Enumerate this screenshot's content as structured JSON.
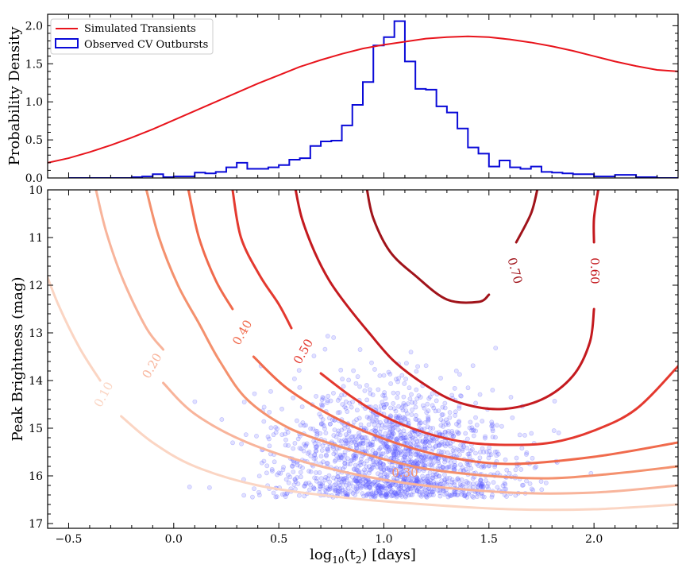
{
  "chart_data": [
    {
      "type": "line+histogram",
      "panel": "top",
      "xlim": [
        -0.6,
        2.4
      ],
      "ylim": [
        0,
        2.15
      ],
      "xlabel": "",
      "ylabel": "Probability Density",
      "yticks": [
        0.0,
        0.5,
        1.0,
        1.5,
        2.0
      ],
      "ytick_labels": [
        "0.0",
        "0.5",
        "1.0",
        "1.5",
        "2.0"
      ],
      "legend_position": "top-left",
      "series": [
        {
          "name": "Simulated Transients",
          "kind": "line",
          "color": "#e8141c",
          "points": [
            [
              -0.6,
              0.2
            ],
            [
              -0.5,
              0.26
            ],
            [
              -0.4,
              0.34
            ],
            [
              -0.3,
              0.43
            ],
            [
              -0.2,
              0.53
            ],
            [
              -0.1,
              0.64
            ],
            [
              0.0,
              0.76
            ],
            [
              0.1,
              0.88
            ],
            [
              0.2,
              1.0
            ],
            [
              0.3,
              1.12
            ],
            [
              0.4,
              1.24
            ],
            [
              0.5,
              1.35
            ],
            [
              0.6,
              1.46
            ],
            [
              0.7,
              1.55
            ],
            [
              0.8,
              1.63
            ],
            [
              0.9,
              1.7
            ],
            [
              1.0,
              1.75
            ],
            [
              1.1,
              1.79
            ],
            [
              1.2,
              1.83
            ],
            [
              1.3,
              1.85
            ],
            [
              1.4,
              1.86
            ],
            [
              1.5,
              1.85
            ],
            [
              1.6,
              1.82
            ],
            [
              1.7,
              1.78
            ],
            [
              1.8,
              1.73
            ],
            [
              1.9,
              1.67
            ],
            [
              2.0,
              1.6
            ],
            [
              2.1,
              1.53
            ],
            [
              2.2,
              1.47
            ],
            [
              2.3,
              1.42
            ],
            [
              2.4,
              1.4
            ]
          ]
        },
        {
          "name": "Observed CV Outbursts",
          "kind": "step-histogram",
          "color": "#0a0ad8",
          "bin_edges": [
            -0.5,
            -0.45,
            -0.4,
            -0.35,
            -0.3,
            -0.25,
            -0.2,
            -0.15,
            -0.1,
            -0.05,
            0.0,
            0.05,
            0.1,
            0.15,
            0.2,
            0.25,
            0.3,
            0.35,
            0.4,
            0.45,
            0.5,
            0.55,
            0.6,
            0.65,
            0.7,
            0.75,
            0.8,
            0.85,
            0.9,
            0.95,
            1.0,
            1.05,
            1.1,
            1.15,
            1.2,
            1.25,
            1.3,
            1.35,
            1.4,
            1.45,
            1.5,
            1.55,
            1.6,
            1.65,
            1.7,
            1.75,
            1.8,
            1.85,
            1.9,
            1.95,
            2.0,
            2.05,
            2.1,
            2.15,
            2.2,
            2.25,
            2.3,
            2.35,
            2.4
          ],
          "counts": [
            0.0,
            0.0,
            0.0,
            0.0,
            0.0,
            0.0,
            0.01,
            0.02,
            0.05,
            0.01,
            0.02,
            0.02,
            0.07,
            0.06,
            0.08,
            0.14,
            0.2,
            0.12,
            0.12,
            0.14,
            0.17,
            0.24,
            0.26,
            0.42,
            0.48,
            0.49,
            0.69,
            0.96,
            1.26,
            1.74,
            1.85,
            2.06,
            1.53,
            1.17,
            1.16,
            0.94,
            0.86,
            0.65,
            0.4,
            0.32,
            0.15,
            0.23,
            0.14,
            0.12,
            0.15,
            0.08,
            0.07,
            0.06,
            0.05,
            0.05,
            0.02,
            0.02,
            0.04,
            0.04,
            0.01,
            0.01,
            0.0,
            0.0
          ]
        }
      ]
    },
    {
      "type": "scatter+contour",
      "panel": "bottom",
      "xlim": [
        -0.6,
        2.4
      ],
      "ylim": [
        17.1,
        10.0
      ],
      "xlabel": "log10(t2) [days]",
      "xlabel_main": "log",
      "xlabel_sub": "10",
      "xlabel_mid": "(t",
      "xlabel_sub2": "2",
      "xlabel_end": ") [days]",
      "ylabel": "Peak Brightness (mag)",
      "xticks": [
        -0.5,
        0.0,
        0.5,
        1.0,
        1.5,
        2.0
      ],
      "xtick_labels": [
        "−0.5",
        "0.0",
        "0.5",
        "1.0",
        "1.5",
        "2.0"
      ],
      "yticks": [
        10,
        11,
        12,
        13,
        14,
        15,
        16,
        17
      ],
      "ytick_labels": [
        "10",
        "11",
        "12",
        "13",
        "14",
        "15",
        "16",
        "17"
      ],
      "scatter": {
        "name": "Observed CV Outbursts",
        "color": "#5a5aff",
        "center": [
          1.05,
          15.6
        ],
        "count": 1700
      },
      "contours": [
        {
          "level": 0.1,
          "label": "0.10",
          "color": "#fbd5c3",
          "left": [
            [
              -0.62,
              11.6
            ],
            [
              -0.55,
              12.4
            ],
            [
              -0.45,
              13.3
            ],
            [
              -0.35,
              14.0
            ]
          ],
          "label_at": [
            -0.33,
            14.3
          ],
          "label_rot": -62,
          "bottom": [
            [
              -0.25,
              14.75
            ],
            [
              -0.1,
              15.3
            ],
            [
              0.1,
              15.8
            ],
            [
              0.4,
              16.2
            ],
            [
              0.8,
              16.45
            ],
            [
              1.2,
              16.6
            ],
            [
              1.6,
              16.7
            ],
            [
              2.0,
              16.7
            ],
            [
              2.4,
              16.6
            ]
          ]
        },
        {
          "level": 0.2,
          "label": "0.20",
          "color": "#f8b49b",
          "left": [
            [
              -0.37,
              10.0
            ],
            [
              -0.32,
              10.9
            ],
            [
              -0.24,
              11.9
            ],
            [
              -0.13,
              12.9
            ],
            [
              -0.05,
              13.35
            ]
          ],
          "label_at": [
            -0.1,
            13.7
          ],
          "label_rot": -60,
          "bottom": [
            [
              -0.05,
              14.05
            ],
            [
              0.1,
              14.7
            ],
            [
              0.35,
              15.3
            ],
            [
              0.7,
              15.8
            ],
            [
              1.1,
              16.15
            ],
            [
              1.6,
              16.35
            ],
            [
              2.0,
              16.35
            ],
            [
              2.4,
              16.2
            ]
          ]
        },
        {
          "level": 0.3,
          "label": "0.30",
          "color": "#f4916e",
          "left": [
            [
              -0.13,
              10.0
            ],
            [
              -0.07,
              11.0
            ],
            [
              0.02,
              12.0
            ],
            [
              0.12,
              12.8
            ],
            [
              0.22,
              13.6
            ],
            [
              0.35,
              14.4
            ],
            [
              0.55,
              15.0
            ],
            [
              0.8,
              15.4
            ]
          ],
          "label_at": [
            1.1,
            15.95
          ],
          "label_rot": 0,
          "bottom": [
            [
              0.8,
              15.4
            ],
            [
              1.0,
              15.65
            ],
            [
              1.2,
              15.85
            ],
            [
              1.5,
              16.0
            ],
            [
              1.8,
              16.05
            ],
            [
              2.1,
              15.95
            ],
            [
              2.4,
              15.8
            ]
          ]
        },
        {
          "level": 0.4,
          "label": "0.40",
          "color": "#f06a4c",
          "left": [
            [
              0.07,
              10.0
            ],
            [
              0.12,
              11.0
            ],
            [
              0.2,
              11.9
            ],
            [
              0.28,
              12.5
            ]
          ],
          "label_at": [
            0.33,
            13.0
          ],
          "label_rot": -60,
          "bottom": [
            [
              0.38,
              13.5
            ],
            [
              0.55,
              14.2
            ],
            [
              0.8,
              14.85
            ],
            [
              1.05,
              15.3
            ],
            [
              1.3,
              15.6
            ],
            [
              1.6,
              15.75
            ],
            [
              2.0,
              15.6
            ],
            [
              2.4,
              15.3
            ]
          ]
        },
        {
          "level": 0.5,
          "label": "0.50",
          "color": "#e4392f",
          "left": [
            [
              0.28,
              10.0
            ],
            [
              0.32,
              11.0
            ],
            [
              0.41,
              11.8
            ],
            [
              0.5,
              12.4
            ],
            [
              0.56,
              12.9
            ]
          ],
          "label_at": [
            0.62,
            13.4
          ],
          "label_rot": -60,
          "bottom": [
            [
              0.7,
              13.85
            ],
            [
              0.85,
              14.35
            ],
            [
              1.0,
              14.75
            ],
            [
              1.2,
              15.1
            ],
            [
              1.4,
              15.3
            ],
            [
              1.6,
              15.35
            ],
            [
              1.8,
              15.3
            ],
            [
              2.0,
              15.05
            ],
            [
              2.2,
              14.6
            ],
            [
              2.4,
              13.7
            ]
          ]
        },
        {
          "level": 0.6,
          "label": "0.60",
          "color": "#c41a1f",
          "left": [
            [
              0.58,
              10.0
            ],
            [
              0.61,
              10.6
            ],
            [
              0.67,
              11.3
            ],
            [
              0.74,
              11.9
            ],
            [
              0.82,
              12.4
            ],
            [
              0.93,
              13.0
            ],
            [
              1.05,
              13.6
            ],
            [
              1.2,
              14.1
            ],
            [
              1.35,
              14.45
            ],
            [
              1.55,
              14.6
            ],
            [
              1.75,
              14.4
            ],
            [
              1.9,
              13.9
            ],
            [
              1.98,
              13.2
            ],
            [
              2.0,
              12.5
            ]
          ],
          "label_at": [
            2.0,
            11.7
          ],
          "label_rot": 90,
          "bottom": [
            [
              2.0,
              11.1
            ],
            [
              2.0,
              10.6
            ],
            [
              2.02,
              10.0
            ]
          ]
        },
        {
          "level": 0.7,
          "label": "0.70",
          "color": "#a0131a",
          "left": [
            [
              0.92,
              10.0
            ],
            [
              0.95,
              10.6
            ],
            [
              1.03,
              11.3
            ],
            [
              1.15,
              11.8
            ],
            [
              1.3,
              12.3
            ],
            [
              1.45,
              12.35
            ],
            [
              1.5,
              12.2
            ]
          ],
          "label_at": [
            1.62,
            11.7
          ],
          "label_rot": 75,
          "bottom": [
            [
              1.63,
              11.1
            ],
            [
              1.7,
              10.5
            ],
            [
              1.73,
              10.0
            ]
          ]
        }
      ]
    }
  ]
}
